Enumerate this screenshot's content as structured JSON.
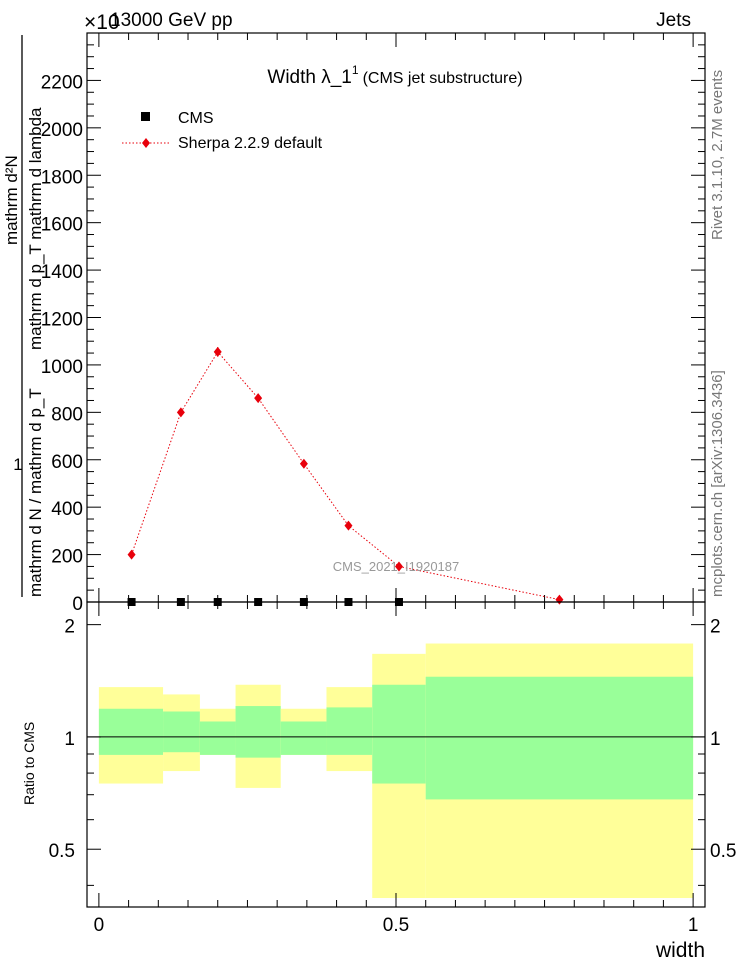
{
  "header": {
    "left": "13000 GeV pp",
    "right": "Jets",
    "exponent": "×10"
  },
  "side_labels": {
    "rivet": "Rivet 3.1.10,  2.7M events",
    "mcplots": "mcplots.cern.ch [arXiv:1306.3436]"
  },
  "chart_data": [
    {
      "type": "scatter",
      "title": "Width λ_1",
      "title_sup": "1",
      "title_suffix": "(CMS jet substructure)",
      "ylabel_numerator": "mathrm d²N",
      "ylabel_numerator_2": "mathrm d p_T mathrm d lambda",
      "ylabel_one": "1",
      "ylabel_denominator": "mathrm d N / mathrm d p_T",
      "ylim": [
        0,
        2400
      ],
      "yticks": [
        0,
        200,
        400,
        600,
        800,
        1000,
        1200,
        1400,
        1600,
        1800,
        2000,
        2200
      ],
      "ytick_labels": [
        "0",
        "200",
        "400",
        "600",
        "800",
        "1000",
        "1200",
        "1400",
        "1600",
        "1800",
        "2000",
        "2200"
      ],
      "xlim": [
        -0.02,
        1.02
      ],
      "legend_placement": "top-left",
      "watermark": "CMS_2021_I1920187",
      "series": [
        {
          "name": "CMS",
          "color": "#000000",
          "marker": "square",
          "x": [
            0.055,
            0.138,
            0.2,
            0.268,
            0.345,
            0.42,
            0.505
          ],
          "y": [
            0,
            0,
            0,
            0,
            0,
            0,
            0
          ]
        },
        {
          "name": "Sherpa 2.2.9 default",
          "color": "#e8000b",
          "marker": "diamond",
          "line": "dotted",
          "x": [
            0.055,
            0.138,
            0.2,
            0.268,
            0.345,
            0.42,
            0.505,
            0.775
          ],
          "y": [
            200,
            800,
            1055,
            860,
            583,
            322,
            150,
            10
          ],
          "yerr": [
            10,
            15,
            20,
            15,
            12,
            10,
            8,
            5
          ]
        }
      ]
    },
    {
      "type": "area",
      "ylabel": "Ratio to CMS",
      "xlabel": "width",
      "xlim": [
        -0.02,
        1.02
      ],
      "ylim": [
        0.35,
        2.3
      ],
      "xticks": [
        0,
        0.5,
        1
      ],
      "xtick_labels": [
        "0",
        "0.5",
        "1"
      ],
      "yticks": [
        0.5,
        1,
        2
      ],
      "ytick_labels": [
        "0.5",
        "1",
        "2"
      ],
      "reference_line": 1,
      "bands": {
        "bins": [
          [
            0.0,
            0.108
          ],
          [
            0.108,
            0.17
          ],
          [
            0.17,
            0.23
          ],
          [
            0.23,
            0.306
          ],
          [
            0.306,
            0.383
          ],
          [
            0.383,
            0.46
          ],
          [
            0.46,
            0.55
          ],
          [
            0.55,
            1.0
          ]
        ],
        "outer_color": "#ffff99",
        "inner_color": "#99ff99",
        "outer_low": [
          0.75,
          0.81,
          0.895,
          0.73,
          0.895,
          0.81,
          0.37,
          0.37
        ],
        "outer_high": [
          1.36,
          1.3,
          1.19,
          1.38,
          1.19,
          1.36,
          1.67,
          1.78
        ],
        "inner_low": [
          0.895,
          0.91,
          0.895,
          0.88,
          0.895,
          0.895,
          0.75,
          0.68
        ],
        "inner_high": [
          1.19,
          1.17,
          1.1,
          1.21,
          1.1,
          1.2,
          1.38,
          1.45
        ]
      }
    }
  ]
}
